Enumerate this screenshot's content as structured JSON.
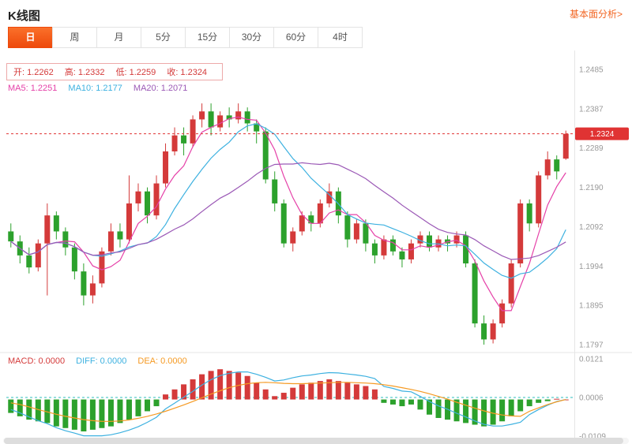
{
  "header": {
    "title": "K线图",
    "link": "基本面分析>"
  },
  "tabs": {
    "items": [
      "日",
      "周",
      "月",
      "5分",
      "15分",
      "30分",
      "60分",
      "4时"
    ],
    "active_index": 0
  },
  "indicators": {
    "ohlc": [
      {
        "label": "开:",
        "value": "1.2262"
      },
      {
        "label": "高:",
        "value": "1.2332"
      },
      {
        "label": "低:",
        "value": "1.2259"
      },
      {
        "label": "收:",
        "value": "1.2324"
      }
    ],
    "ma": [
      {
        "label": "MA5:",
        "value": "1.2251"
      },
      {
        "label": "MA10:",
        "value": "1.2177"
      },
      {
        "label": "MA20:",
        "value": "1.2071"
      }
    ],
    "macd": [
      {
        "label": "MACD:",
        "value": "0.0000"
      },
      {
        "label": "DIFF:",
        "value": "0.0000"
      },
      {
        "label": "DEA:",
        "value": "0.0000"
      }
    ]
  },
  "axis": {
    "price_labels": [
      "1.2485",
      "1.2387",
      "1.2289",
      "1.2190",
      "1.2092",
      "1.1994",
      "1.1895",
      "1.1797"
    ],
    "macd_labels": [
      "0.0121",
      "0.0006",
      "-0.0109"
    ],
    "current_price": "1.2324"
  },
  "chart_data": {
    "type": "candlestick+macd",
    "title": "K线图 (日)",
    "legend": [
      "MA5",
      "MA10",
      "MA20",
      "DIFF",
      "DEA",
      "MACD"
    ],
    "price_range": [
      1.1797,
      1.2485
    ],
    "macd_range": [
      -0.0109,
      0.0121
    ],
    "macd_baseline": 0.0006,
    "current_price": 1.2324,
    "ma_windows": [
      5,
      10,
      20
    ],
    "colors": {
      "up": "#d43a3a",
      "down": "#2ca12c",
      "ma5": "#e541a8",
      "ma10": "#3db1e0",
      "ma20": "#9b59b6",
      "diff": "#3db1e0",
      "dea": "#f59a23",
      "dotted_price": "#e03333",
      "dotted_macd": "#2cbcbc",
      "active_tab": "#ee4a0c",
      "link": "#f26522"
    },
    "candles": [
      [
        1.208,
        1.21,
        1.204,
        1.2055
      ],
      [
        1.2055,
        1.207,
        1.2,
        1.202
      ],
      [
        1.202,
        1.204,
        1.1975,
        1.199
      ],
      [
        1.199,
        1.206,
        1.198,
        1.205
      ],
      [
        1.205,
        1.215,
        1.192,
        1.212
      ],
      [
        1.212,
        1.213,
        1.206,
        1.208
      ],
      [
        1.208,
        1.209,
        1.202,
        1.204
      ],
      [
        1.204,
        1.205,
        1.196,
        1.198
      ],
      [
        1.198,
        1.2,
        1.1895,
        1.192
      ],
      [
        1.192,
        1.197,
        1.19,
        1.195
      ],
      [
        1.195,
        1.204,
        1.194,
        1.203
      ],
      [
        1.203,
        1.21,
        1.202,
        1.208
      ],
      [
        1.208,
        1.21,
        1.204,
        1.206
      ],
      [
        1.206,
        1.222,
        1.205,
        1.215
      ],
      [
        1.215,
        1.22,
        1.213,
        1.218
      ],
      [
        1.218,
        1.219,
        1.21,
        1.212
      ],
      [
        1.212,
        1.222,
        1.211,
        1.22
      ],
      [
        1.22,
        1.23,
        1.219,
        1.228
      ],
      [
        1.228,
        1.234,
        1.227,
        1.232
      ],
      [
        1.232,
        1.234,
        1.227,
        1.23
      ],
      [
        1.23,
        1.237,
        1.229,
        1.236
      ],
      [
        1.236,
        1.24,
        1.234,
        1.238
      ],
      [
        1.238,
        1.24,
        1.232,
        1.234
      ],
      [
        1.234,
        1.238,
        1.233,
        1.237
      ],
      [
        1.237,
        1.239,
        1.234,
        1.236
      ],
      [
        1.236,
        1.24,
        1.235,
        1.238
      ],
      [
        1.238,
        1.239,
        1.233,
        1.235
      ],
      [
        1.235,
        1.236,
        1.23,
        1.233
      ],
      [
        1.233,
        1.234,
        1.22,
        1.221
      ],
      [
        1.221,
        1.223,
        1.213,
        1.215
      ],
      [
        1.215,
        1.216,
        1.204,
        1.205
      ],
      [
        1.205,
        1.209,
        1.203,
        1.208
      ],
      [
        1.208,
        1.213,
        1.207,
        1.212
      ],
      [
        1.212,
        1.213,
        1.208,
        1.21
      ],
      [
        1.21,
        1.216,
        1.209,
        1.215
      ],
      [
        1.215,
        1.22,
        1.214,
        1.218
      ],
      [
        1.218,
        1.219,
        1.21,
        1.212
      ],
      [
        1.212,
        1.213,
        1.204,
        1.206
      ],
      [
        1.206,
        1.211,
        1.205,
        1.21
      ],
      [
        1.21,
        1.211,
        1.203,
        1.205
      ],
      [
        1.205,
        1.206,
        1.2,
        1.202
      ],
      [
        1.202,
        1.207,
        1.201,
        1.206
      ],
      [
        1.206,
        1.207,
        1.202,
        1.203
      ],
      [
        1.203,
        1.204,
        1.199,
        1.201
      ],
      [
        1.201,
        1.206,
        1.2,
        1.205
      ],
      [
        1.205,
        1.208,
        1.204,
        1.207
      ],
      [
        1.207,
        1.208,
        1.203,
        1.204
      ],
      [
        1.204,
        1.207,
        1.203,
        1.206
      ],
      [
        1.206,
        1.207,
        1.203,
        1.205
      ],
      [
        1.205,
        1.208,
        1.204,
        1.207
      ],
      [
        1.207,
        1.208,
        1.199,
        1.2
      ],
      [
        1.2,
        1.201,
        1.184,
        1.185
      ],
      [
        1.185,
        1.187,
        1.1797,
        1.181
      ],
      [
        1.181,
        1.186,
        1.18,
        1.185
      ],
      [
        1.185,
        1.191,
        1.184,
        1.19
      ],
      [
        1.19,
        1.201,
        1.189,
        1.2
      ],
      [
        1.2,
        1.216,
        1.199,
        1.215
      ],
      [
        1.215,
        1.216,
        1.208,
        1.21
      ],
      [
        1.21,
        1.223,
        1.209,
        1.222
      ],
      [
        1.222,
        1.228,
        1.221,
        1.226
      ],
      [
        1.226,
        1.227,
        1.221,
        1.223
      ],
      [
        1.2262,
        1.2332,
        1.2259,
        1.2324
      ]
    ],
    "macd": {
      "histogram": [
        -0.004,
        -0.005,
        -0.006,
        -0.0065,
        -0.007,
        -0.008,
        -0.0085,
        -0.009,
        -0.0095,
        -0.009,
        -0.0085,
        -0.008,
        -0.007,
        -0.006,
        -0.005,
        -0.0035,
        -0.002,
        0.0015,
        0.003,
        0.0045,
        0.006,
        0.0075,
        0.0085,
        0.009,
        0.0085,
        0.008,
        0.007,
        0.005,
        0.003,
        0.001,
        0.002,
        0.0035,
        0.0045,
        0.005,
        0.0055,
        0.006,
        0.0055,
        0.005,
        0.0045,
        0.004,
        0.003,
        -0.001,
        -0.0015,
        -0.002,
        -0.0015,
        -0.003,
        -0.0045,
        -0.0055,
        -0.006,
        -0.0065,
        -0.007,
        -0.0075,
        -0.008,
        -0.0075,
        -0.0065,
        -0.005,
        -0.0035,
        -0.002,
        -0.001,
        -0.0005,
        0.0002,
        0.0
      ],
      "diff": [
        -0.003,
        -0.004,
        -0.0052,
        -0.0063,
        -0.0072,
        -0.0084,
        -0.0093,
        -0.01,
        -0.0108,
        -0.0108,
        -0.0108,
        -0.0105,
        -0.0099,
        -0.0091,
        -0.0081,
        -0.0068,
        -0.0053,
        -0.0028,
        -0.0011,
        0.0007,
        0.0024,
        0.0043,
        0.0059,
        0.0071,
        0.0078,
        0.0082,
        0.0082,
        0.0075,
        0.0066,
        0.0055,
        0.0058,
        0.0065,
        0.007,
        0.0073,
        0.0077,
        0.008,
        0.0079,
        0.0076,
        0.0073,
        0.0069,
        0.0062,
        0.0039,
        0.0033,
        0.0025,
        0.0023,
        0.0009,
        -0.0006,
        -0.0019,
        -0.0029,
        -0.0041,
        -0.0052,
        -0.0064,
        -0.0074,
        -0.0079,
        -0.0079,
        -0.0074,
        -0.0068,
        -0.0045,
        -0.003,
        -0.0017,
        -0.0006,
        0.0
      ],
      "dea": [
        -0.001,
        -0.0015,
        -0.0022,
        -0.003,
        -0.0037,
        -0.0044,
        -0.005,
        -0.0055,
        -0.006,
        -0.0063,
        -0.0065,
        -0.0065,
        -0.0064,
        -0.0061,
        -0.0056,
        -0.005,
        -0.0043,
        -0.0035,
        -0.0026,
        -0.0016,
        -0.0006,
        0.0005,
        0.0016,
        0.0026,
        0.0035,
        0.0042,
        0.0047,
        0.005,
        0.0051,
        0.005,
        0.0048,
        0.0047,
        0.0047,
        0.0048,
        0.0049,
        0.005,
        0.0051,
        0.0051,
        0.005,
        0.0049,
        0.0047,
        0.0044,
        0.004,
        0.0035,
        0.003,
        0.0024,
        0.0017,
        0.0009,
        0.0001,
        -0.0008,
        -0.0017,
        -0.0026,
        -0.0034,
        -0.0041,
        -0.0046,
        -0.0049,
        -0.005,
        -0.0035,
        -0.0025,
        -0.0015,
        -0.0007,
        0.0
      ]
    }
  }
}
